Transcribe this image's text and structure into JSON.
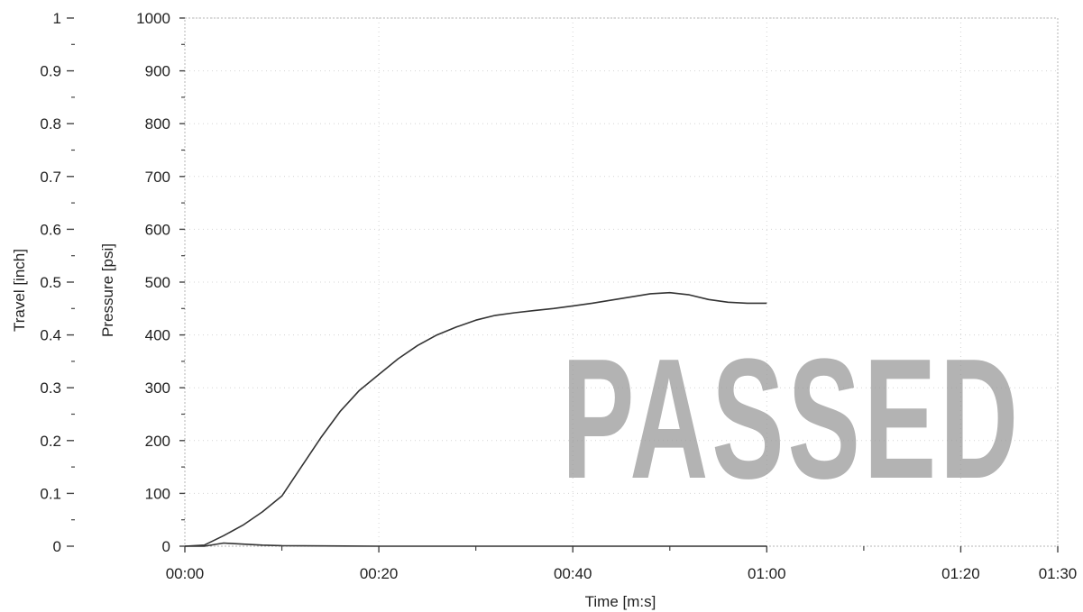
{
  "chart_data": {
    "type": "line",
    "title": "",
    "xlabel": "Time [m:s]",
    "ylabel_left_outer": "Travel [inch]",
    "ylabel_left_inner": "Pressure [psi]",
    "xlim_seconds": [
      0,
      90
    ],
    "x_ticks": [
      "00:00",
      "00:20",
      "00:40",
      "01:00",
      "01:20",
      "01:30"
    ],
    "travel_ylim": [
      0,
      1
    ],
    "travel_ticks": [
      "0",
      "0.1",
      "0.2",
      "0.3",
      "0.4",
      "0.5",
      "0.6",
      "0.7",
      "0.8",
      "0.9",
      "1"
    ],
    "pressure_ylim": [
      0,
      1000
    ],
    "pressure_ticks": [
      "0",
      "100",
      "200",
      "300",
      "400",
      "500",
      "600",
      "700",
      "800",
      "900",
      "1000"
    ],
    "grid": true,
    "stamp_text": "PASSED",
    "series": [
      {
        "axis": "pressure",
        "color": "#333333",
        "x": [
          "00:00",
          "00:02",
          "00:04",
          "00:06",
          "00:08",
          "00:10",
          "00:12",
          "00:14",
          "00:16",
          "00:18",
          "00:20",
          "00:22",
          "00:24",
          "00:26",
          "00:28",
          "00:30",
          "00:32",
          "00:34",
          "00:36",
          "00:38",
          "00:40",
          "00:42",
          "00:44",
          "00:46",
          "00:48",
          "00:50",
          "00:52",
          "00:54",
          "00:56",
          "00:58",
          "01:00"
        ],
        "values": [
          0,
          2,
          20,
          40,
          65,
          95,
          150,
          205,
          255,
          295,
          325,
          355,
          380,
          400,
          415,
          428,
          437,
          442,
          446,
          450,
          455,
          460,
          466,
          472,
          478,
          480,
          476,
          467,
          462,
          460,
          460
        ]
      },
      {
        "axis": "travel",
        "color": "#333333",
        "x": [
          "00:00",
          "00:02",
          "00:04",
          "00:06",
          "00:08",
          "00:10",
          "00:20",
          "00:30",
          "00:40",
          "00:50",
          "01:00"
        ],
        "values": [
          0.0,
          0.0,
          0.006,
          0.004,
          0.002,
          0.001,
          0.0,
          0.0,
          0.0,
          0.0,
          0.0
        ]
      }
    ]
  }
}
